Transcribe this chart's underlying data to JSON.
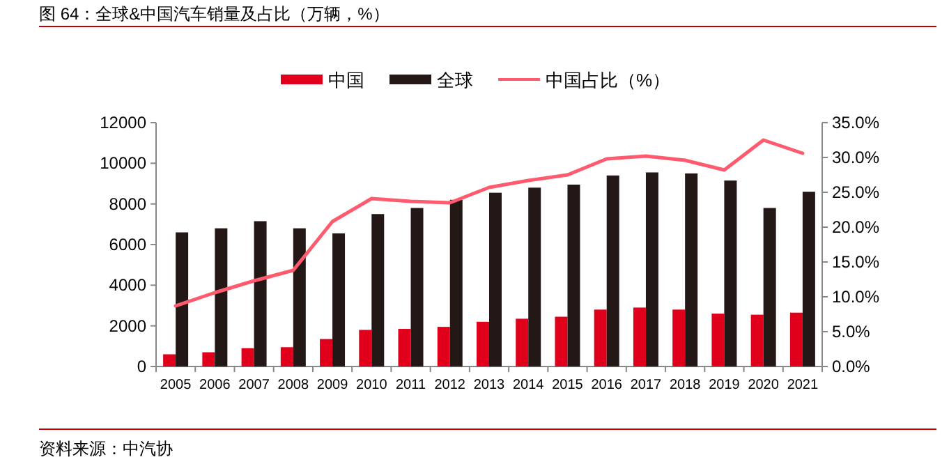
{
  "chart_data": {
    "type": "bar",
    "title": "图 64：全球&中国汽车销量及占比（万辆，%）",
    "categories": [
      "2005",
      "2006",
      "2007",
      "2008",
      "2009",
      "2010",
      "2011",
      "2012",
      "2013",
      "2014",
      "2015",
      "2016",
      "2017",
      "2018",
      "2019",
      "2020",
      "2021"
    ],
    "series": [
      {
        "name": "中国",
        "color": "#e0001b",
        "values": [
          600,
          700,
          900,
          950,
          1350,
          1800,
          1850,
          1950,
          2200,
          2350,
          2450,
          2800,
          2900,
          2800,
          2600,
          2550,
          2650
        ]
      },
      {
        "name": "全球",
        "color": "#231815",
        "values": [
          6600,
          6800,
          7150,
          6800,
          6550,
          7500,
          7800,
          8200,
          8550,
          8800,
          8950,
          9400,
          9550,
          9500,
          9150,
          7800,
          8600
        ]
      },
      {
        "name": "中国占比（%）",
        "type": "line",
        "axis": "y2",
        "color": "#ff5a6e",
        "values": [
          8.7,
          10.6,
          12.3,
          13.8,
          20.8,
          24.1,
          23.7,
          23.5,
          25.7,
          26.7,
          27.5,
          29.8,
          30.2,
          29.6,
          28.2,
          32.5,
          30.6
        ]
      }
    ],
    "ylim": [
      0,
      12000
    ],
    "yticks": [
      0,
      2000,
      4000,
      6000,
      8000,
      10000,
      12000
    ],
    "y2lim": [
      0,
      35
    ],
    "y2ticks": [
      {
        "value": 0,
        "label": "0.0%"
      },
      {
        "value": 5,
        "label": "5.0%"
      },
      {
        "value": 10,
        "label": "10.0%"
      },
      {
        "value": 15,
        "label": "15.0%"
      },
      {
        "value": 20,
        "label": "20.0%"
      },
      {
        "value": 25,
        "label": "25.0%"
      },
      {
        "value": 30,
        "label": "30.0%"
      },
      {
        "value": 35,
        "label": "35.0%"
      }
    ],
    "legend": "top",
    "grid": false,
    "annotations": [
      "资料来源：中汽协"
    ]
  }
}
